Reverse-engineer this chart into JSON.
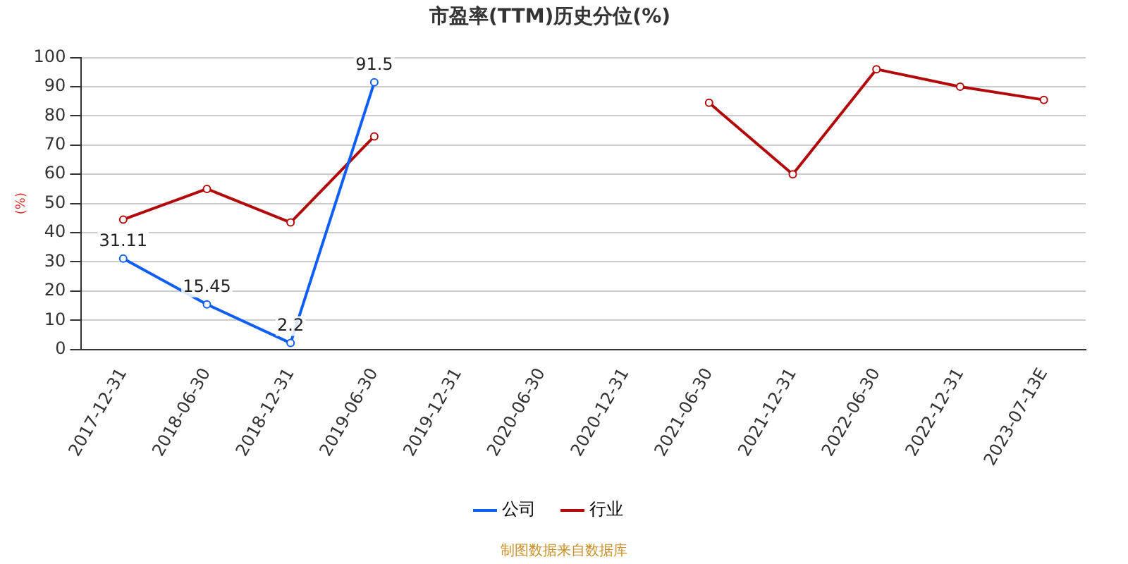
{
  "chart_data": {
    "type": "line",
    "title": "市盈率(TTM)历史分位(%)",
    "ylabel": "(%)",
    "categories": [
      "2017-12-31",
      "2018-06-30",
      "2018-12-31",
      "2019-06-30",
      "2019-12-31",
      "2020-06-30",
      "2020-12-31",
      "2021-06-30",
      "2021-12-31",
      "2022-06-30",
      "2022-12-31",
      "2023-07-13E"
    ],
    "series": [
      {
        "name": "公司",
        "color": "#0f5ef7",
        "values": [
          31.11,
          15.45,
          2.2,
          91.5,
          null,
          null,
          null,
          null,
          null,
          null,
          null,
          null
        ],
        "value_labels": [
          "31.11",
          "15.45",
          "2.2",
          "91.5",
          null,
          null,
          null,
          null,
          null,
          null,
          null,
          null
        ]
      },
      {
        "name": "行业",
        "color": "#b20a0a",
        "values": [
          44.5,
          55,
          43.5,
          73,
          null,
          null,
          null,
          84.5,
          60,
          96,
          90,
          85.5
        ]
      }
    ],
    "ylim": [
      0,
      100
    ],
    "yticks": [
      0,
      10,
      20,
      30,
      40,
      50,
      60,
      70,
      80,
      90,
      100
    ],
    "grid": "y",
    "legend": "bottom",
    "marker": "circle",
    "line_style": "solid",
    "annotations": [
      "制图数据来自数据库"
    ]
  }
}
